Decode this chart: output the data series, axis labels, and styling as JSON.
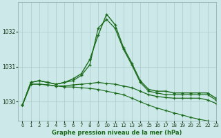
{
  "title": "Graphe pression niveau de la mer (hPa)",
  "bg_color": "#cce8e8",
  "grid_color": "#aacccc",
  "line_color": "#1a6b1a",
  "xlim": [
    -0.5,
    23
  ],
  "ylim": [
    1029.45,
    1032.85
  ],
  "yticks": [
    1030,
    1031,
    1032
  ],
  "xticks": [
    0,
    1,
    2,
    3,
    4,
    5,
    6,
    7,
    8,
    9,
    10,
    11,
    12,
    13,
    14,
    15,
    16,
    17,
    18,
    19,
    20,
    21,
    22,
    23
  ],
  "series_peak": [
    1029.9,
    1030.55,
    1030.6,
    1030.55,
    1030.5,
    1030.55,
    1030.65,
    1030.8,
    1031.2,
    1031.9,
    1032.5,
    1032.2,
    1031.55,
    1031.1,
    1030.6,
    1030.35,
    1030.3,
    1030.3,
    1030.25,
    1030.25,
    1030.25,
    1030.25,
    1030.25,
    1030.1
  ],
  "series_peak2": [
    1029.9,
    1030.55,
    1030.6,
    1030.55,
    1030.5,
    1030.55,
    1030.6,
    1030.75,
    1031.05,
    1032.1,
    1032.35,
    1032.1,
    1031.5,
    1031.05,
    1030.55,
    1030.3,
    1030.25,
    1030.2,
    1030.2,
    1030.2,
    1030.2,
    1030.2,
    1030.2,
    1030.05
  ],
  "series_flat1": [
    1029.9,
    1030.5,
    1030.5,
    1030.48,
    1030.45,
    1030.45,
    1030.48,
    1030.5,
    1030.52,
    1030.55,
    1030.52,
    1030.5,
    1030.45,
    1030.4,
    1030.3,
    1030.2,
    1030.15,
    1030.12,
    1030.1,
    1030.1,
    1030.1,
    1030.1,
    1030.05,
    1029.95
  ],
  "series_descend": [
    1029.9,
    1030.5,
    1030.5,
    1030.48,
    1030.45,
    1030.42,
    1030.42,
    1030.4,
    1030.38,
    1030.35,
    1030.3,
    1030.25,
    1030.2,
    1030.1,
    1030.0,
    1029.9,
    1029.82,
    1029.75,
    1029.68,
    1029.62,
    1029.55,
    1029.5,
    1029.45,
    1029.38
  ]
}
